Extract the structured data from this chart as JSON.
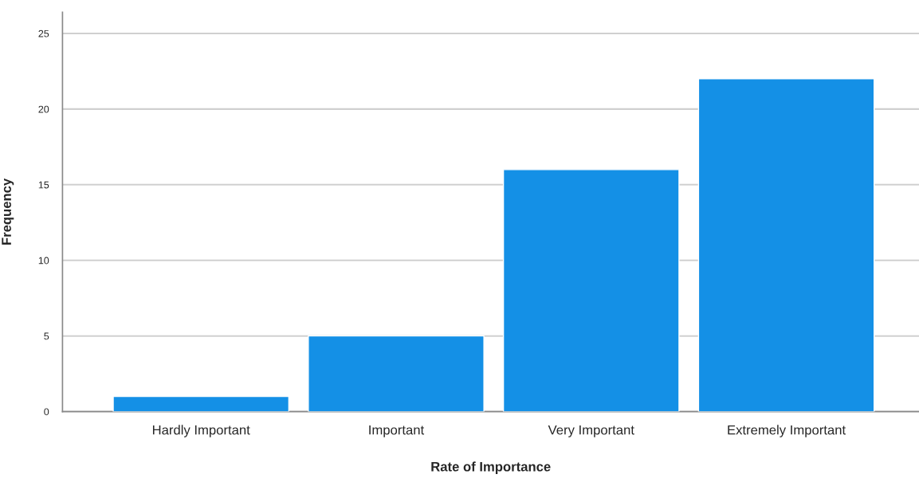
{
  "chart_data": {
    "type": "bar",
    "xlabel": "Rate of Importance",
    "ylabel": "Frequency",
    "categories": [
      "Hardly Important",
      "Important",
      "Very Important",
      "Extremely Important"
    ],
    "values": [
      1,
      5,
      16,
      22
    ],
    "color": "#1490e6",
    "ylim": [
      0,
      26.4
    ],
    "yticks": [
      0,
      5,
      10,
      15,
      20,
      25
    ],
    "grid": "y"
  }
}
